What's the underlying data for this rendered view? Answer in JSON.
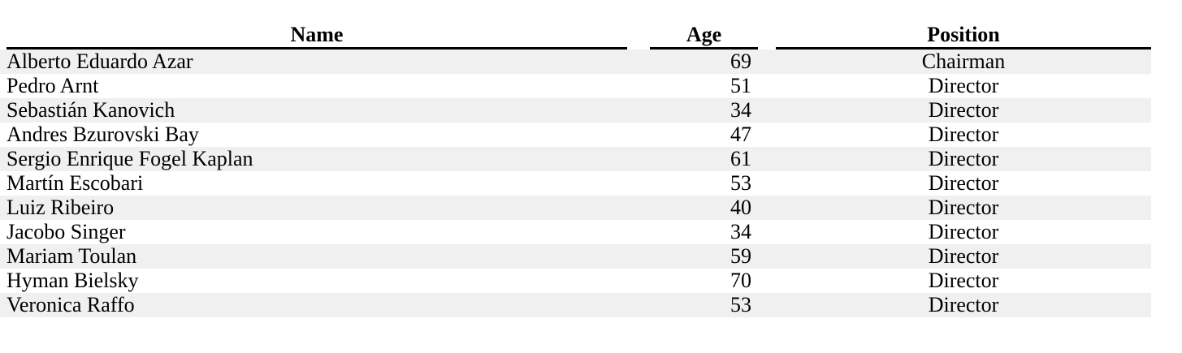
{
  "table": {
    "columns": [
      {
        "key": "name",
        "label": "Name"
      },
      {
        "key": "age",
        "label": "Age"
      },
      {
        "key": "position",
        "label": "Position"
      }
    ],
    "rows": [
      {
        "name": "Alberto Eduardo Azar",
        "age": "69",
        "position": "Chairman"
      },
      {
        "name": "Pedro Arnt",
        "age": "51",
        "position": "Director"
      },
      {
        "name": "Sebastián Kanovich",
        "age": "34",
        "position": "Director"
      },
      {
        "name": "Andres Bzurovski Bay",
        "age": "47",
        "position": "Director"
      },
      {
        "name": "Sergio Enrique Fogel Kaplan",
        "age": "61",
        "position": "Director"
      },
      {
        "name": "Martín Escobari",
        "age": "53",
        "position": "Director"
      },
      {
        "name": "Luiz Ribeiro",
        "age": "40",
        "position": "Director"
      },
      {
        "name": "Jacobo Singer",
        "age": "34",
        "position": "Director"
      },
      {
        "name": "Mariam Toulan",
        "age": "59",
        "position": "Director"
      },
      {
        "name": "Hyman Bielsky",
        "age": "70",
        "position": "Director"
      },
      {
        "name": "Veronica Raffo",
        "age": "53",
        "position": "Director"
      }
    ]
  },
  "colors": {
    "row_shade": "#f0f0f0",
    "rule": "#000000",
    "text": "#000000",
    "background": "#ffffff"
  }
}
